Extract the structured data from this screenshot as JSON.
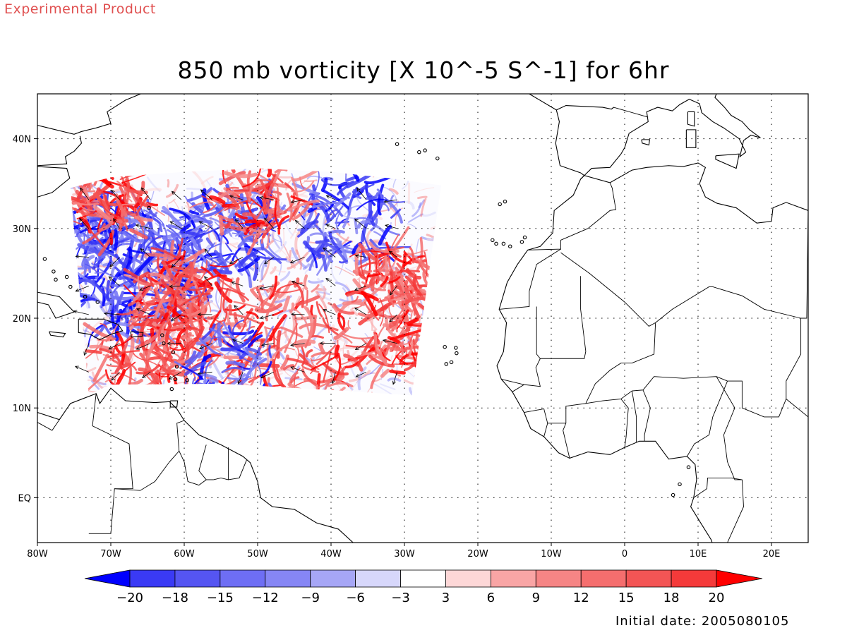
{
  "header": {
    "label": "Experimental Product",
    "title": "850 mb vorticity [X 10^-5 S^-1] for 6hr"
  },
  "footer": {
    "initial_date": "Initial date: 2005080105"
  },
  "colors": {
    "label": "#e05050",
    "positive": "#ff0000",
    "negative": "#0000ff",
    "coast": "#000000"
  },
  "map": {
    "lon_range": [
      -80,
      25
    ],
    "lat_range": [
      -5,
      45
    ],
    "lon_ticks": [
      "80W",
      "70W",
      "60W",
      "50W",
      "40W",
      "30W",
      "20W",
      "10W",
      "0",
      "10E",
      "20E"
    ],
    "lat_ticks": [
      "EQ",
      "10N",
      "20N",
      "30N",
      "40N"
    ],
    "grid": "dotted"
  },
  "colorbar": {
    "labels": [
      "-20",
      "-18",
      "-15",
      "-12",
      "-9",
      "-6",
      "-3",
      "3",
      "6",
      "9",
      "12",
      "15",
      "18",
      "20"
    ],
    "colors": [
      "#0000ff",
      "#3a3af5",
      "#5555f2",
      "#6e6ef4",
      "#8686f5",
      "#a6a6f6",
      "#d7d7fb",
      "#ffffff",
      "#fdd7d7",
      "#f9a5a5",
      "#f68585",
      "#f56e6e",
      "#f35555",
      "#f43a3a",
      "#ff0000"
    ]
  }
}
